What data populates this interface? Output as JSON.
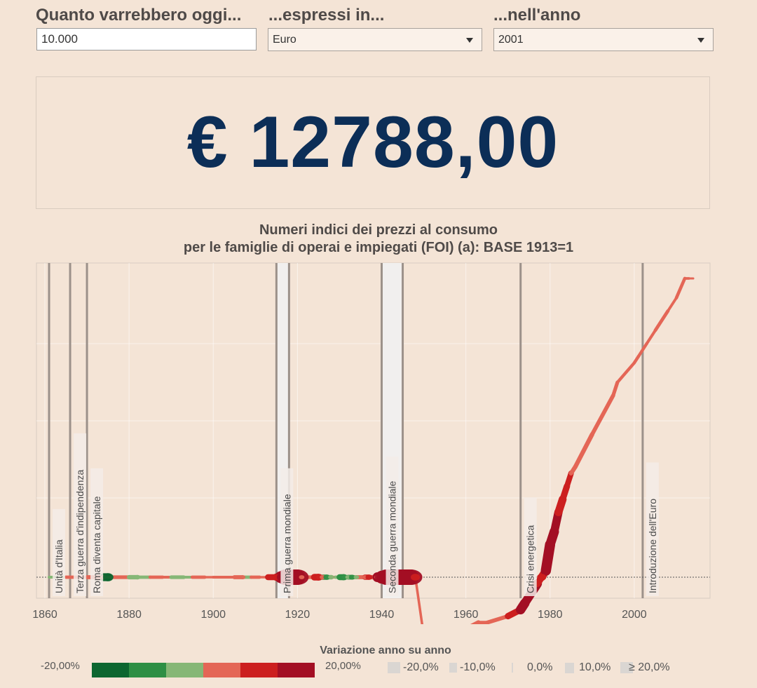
{
  "controls": {
    "amount_label": "Quanto varrebbero oggi...",
    "amount_value": "10.000",
    "currency_label": "...espressi in...",
    "currency_value": "Euro",
    "year_label": "...nell'anno",
    "year_value": "2001"
  },
  "result": {
    "value": "€ 12788,00"
  },
  "chart_title_line1": "Numeri indici dei prezzi al consumo",
  "chart_title_line2": "per le famiglie di operai e impiegati (FOI) (a): BASE 1913=1",
  "colors": {
    "background": "#f4e4d6",
    "result_text": "#0c2e57",
    "neg_dark": "#0d6630",
    "neg_mid": "#2e8f45",
    "neg_light": "#86b776",
    "pos_light": "#e46656",
    "pos_mid": "#cc1f1f",
    "pos_dark": "#a30f24"
  },
  "chart_data": {
    "type": "line",
    "title": "Numeri indici dei prezzi al consumo per le famiglie di operai e impiegati (FOI) (a): BASE 1913=1",
    "xlabel": "",
    "ylabel": "",
    "xlim": [
      1858,
      2018
    ],
    "ylim": [
      0,
      4300
    ],
    "x_ticks": [
      1860,
      1880,
      1900,
      1920,
      1940,
      1960,
      1980,
      2000
    ],
    "grid": true,
    "events": [
      {
        "label": "Unità d'Italia",
        "year": 1861
      },
      {
        "label": "Terza guerra d'indipendenza",
        "year": 1866
      },
      {
        "label": "Roma diventa capitale",
        "year": 1870
      },
      {
        "label": "Prima guerra mondiale",
        "start": 1915,
        "end": 1918
      },
      {
        "label": "Seconda guerra mondiale",
        "start": 1940,
        "end": 1945
      },
      {
        "label": "Crisi energetica",
        "year": 1973
      },
      {
        "label": "Introduzione dell'Euro",
        "year": 2002
      }
    ],
    "series": [
      {
        "points": [
          [
            1861,
            1,
            0.5
          ],
          [
            1865,
            1,
            -2
          ],
          [
            1870,
            1,
            3
          ],
          [
            1873,
            1,
            5
          ],
          [
            1874,
            1,
            6
          ],
          [
            1875,
            1,
            -15
          ],
          [
            1876,
            1,
            2
          ],
          [
            1880,
            1,
            4
          ],
          [
            1882,
            1,
            -6
          ],
          [
            1885,
            1,
            -3
          ],
          [
            1888,
            1,
            3
          ],
          [
            1890,
            1,
            2
          ],
          [
            1893,
            1,
            -4
          ],
          [
            1895,
            1,
            -2
          ],
          [
            1898,
            1,
            3
          ],
          [
            1900,
            1,
            1
          ],
          [
            1903,
            1,
            2
          ],
          [
            1905,
            1,
            2
          ],
          [
            1907,
            1,
            5
          ],
          [
            1909,
            1,
            -3
          ],
          [
            1911,
            1,
            3
          ],
          [
            1913,
            1,
            1
          ],
          [
            1915,
            1,
            10
          ],
          [
            1916,
            1,
            14
          ],
          [
            1917,
            1,
            25
          ],
          [
            1918,
            1,
            35
          ],
          [
            1919,
            1,
            30
          ],
          [
            1920,
            1,
            38
          ],
          [
            1921,
            1,
            5
          ],
          [
            1922,
            1,
            -3
          ],
          [
            1924,
            1,
            4
          ],
          [
            1925,
            1,
            12
          ],
          [
            1926,
            1,
            6
          ],
          [
            1927,
            1,
            -8
          ],
          [
            1928,
            1,
            -6
          ],
          [
            1929,
            1,
            2
          ],
          [
            1930,
            1,
            -3
          ],
          [
            1931,
            1,
            -10
          ],
          [
            1932,
            1,
            -5
          ],
          [
            1933,
            1,
            -7
          ],
          [
            1934,
            1,
            -5
          ],
          [
            1936,
            1,
            5
          ],
          [
            1937,
            1,
            8
          ],
          [
            1939,
            1,
            6
          ],
          [
            1940,
            1,
            20
          ],
          [
            1941,
            1,
            28
          ],
          [
            1942,
            1,
            35
          ],
          [
            1943,
            1,
            40
          ],
          [
            1944,
            1,
            40
          ],
          [
            1945,
            1,
            40
          ],
          [
            1946,
            1,
            35
          ],
          [
            1947,
            1,
            40
          ],
          [
            1948,
            1,
            12
          ],
          [
            1950,
            0.1,
            1
          ],
          [
            1951,
            0.1,
            9
          ],
          [
            1955,
            0.1,
            3
          ],
          [
            1960,
            0.2,
            2
          ],
          [
            1963,
            0.3,
            7
          ],
          [
            1965,
            0.3,
            4
          ],
          [
            1970,
            0.4,
            5
          ],
          [
            1973,
            0.5,
            11
          ],
          [
            1974,
            0.6,
            19
          ],
          [
            1975,
            0.7,
            17
          ],
          [
            1976,
            0.8,
            17
          ],
          [
            1977,
            0.9,
            18
          ],
          [
            1978,
            1.0,
            12
          ],
          [
            1979,
            1.1,
            15
          ],
          [
            1980,
            1.5,
            21
          ],
          [
            1981,
            1.7,
            19
          ],
          [
            1982,
            2.0,
            16
          ],
          [
            1983,
            2.2,
            15
          ],
          [
            1984,
            2.4,
            11
          ],
          [
            1985,
            2.6,
            9
          ],
          [
            1986,
            2.7,
            6
          ],
          [
            1990,
            3.2,
            6
          ],
          [
            1995,
            3.8,
            5
          ],
          [
            1996,
            4.0,
            4
          ],
          [
            2000,
            4.3,
            2.5
          ],
          [
            2001,
            4.4,
            2.7
          ],
          [
            2003,
            4.6,
            2.5
          ],
          [
            2005,
            4.8,
            2
          ],
          [
            2008,
            5.1,
            3.3
          ],
          [
            2010,
            5.3,
            1.5
          ],
          [
            2012,
            5.6,
            3
          ],
          [
            2013,
            5.6,
            1.2
          ],
          [
            2014,
            5.6,
            0.2
          ]
        ],
        "note": "[year, index, yearly change %]"
      }
    ],
    "legend": {
      "title": "Variazione anno su anno",
      "color_min": "-20,00%",
      "color_max": "20,00%",
      "size_items": [
        "-20,0%",
        "-10,0%",
        "0,0%",
        "10,0%",
        "≥ 20,0%"
      ]
    }
  }
}
